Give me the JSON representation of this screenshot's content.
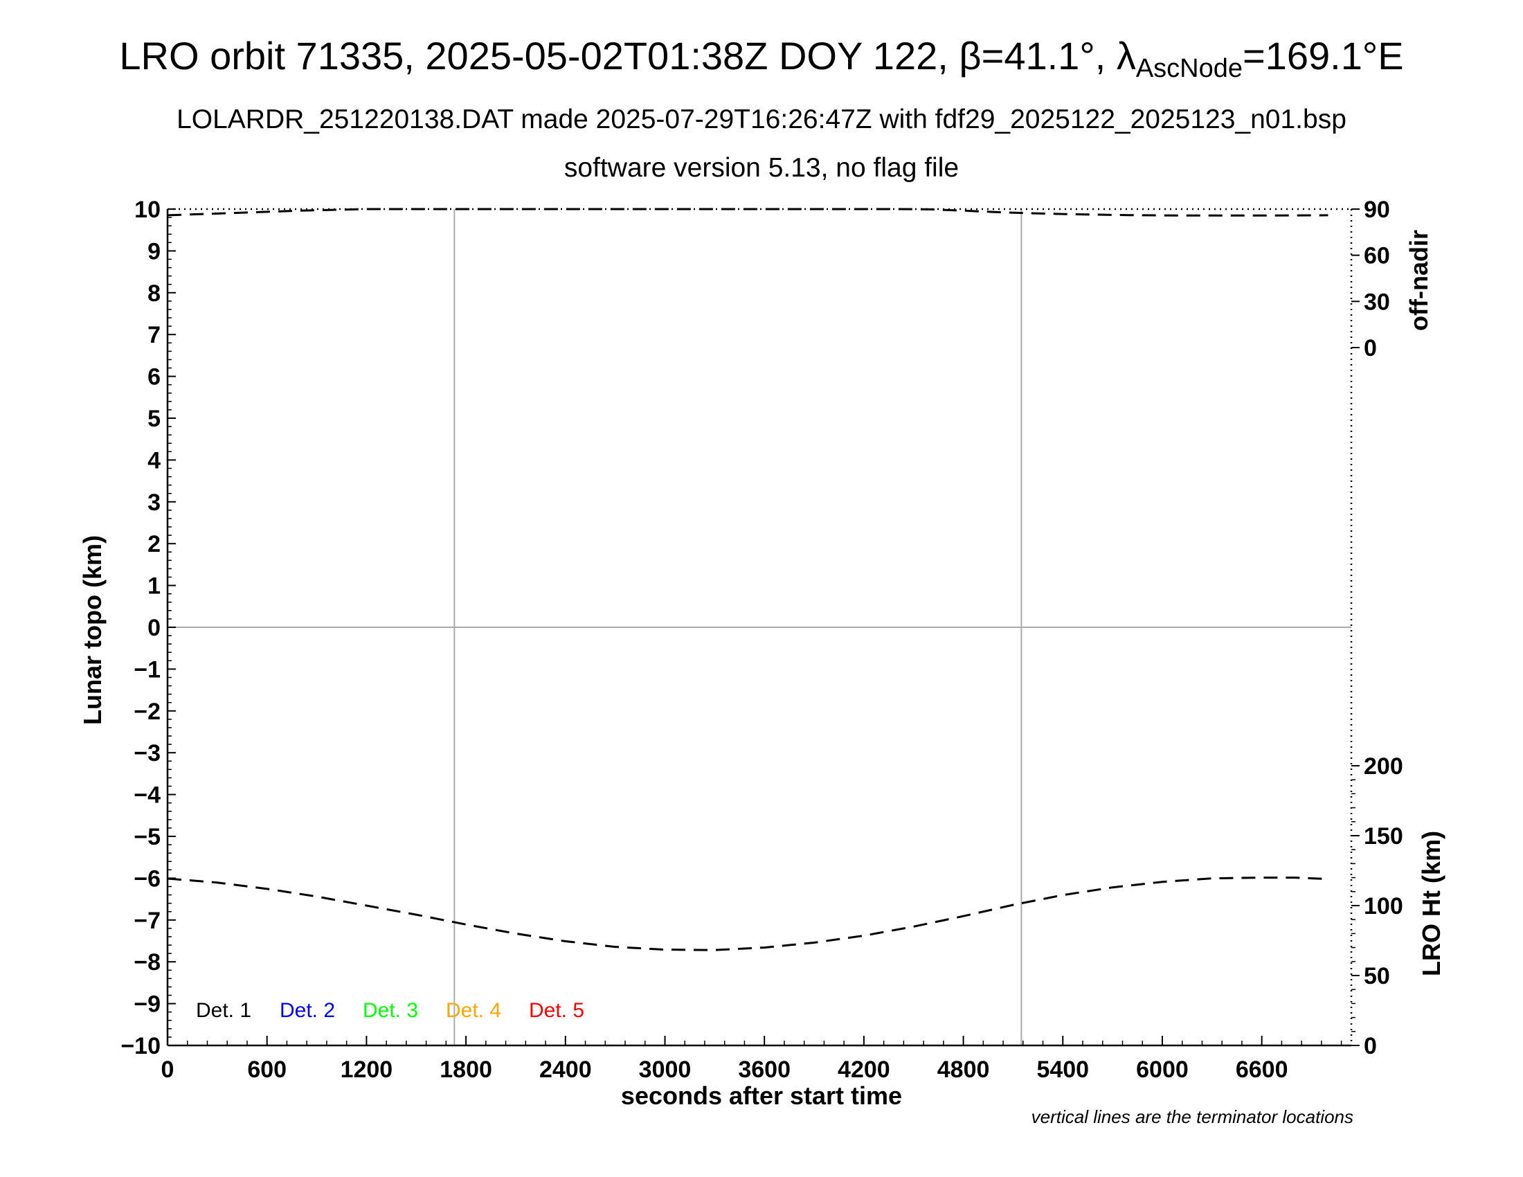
{
  "header": {
    "title_main": "LRO orbit 71335, 2025-05-02T01:38Z DOY 122, β=41.1°, λ",
    "title_sub": "AscNode",
    "title_end": "=169.1°E",
    "subtitle_1": "LOLARDR_251220138.DAT made 2025-07-29T16:26:47Z with fdf29_2025122_2025123_n01.bsp",
    "subtitle_2": "software version 5.13, no flag file"
  },
  "chart_data": {
    "type": "line",
    "xlabel": "seconds after start time",
    "ylabel": "Lunar topo (km)",
    "ylabel_right_top": "off-nadir",
    "ylabel_right_bottom": "LRO Ht (km)",
    "xlim": [
      0,
      7140
    ],
    "ylim": [
      -10,
      10
    ],
    "x_ticks": [
      "0",
      "600",
      "1200",
      "1800",
      "2400",
      "3000",
      "3600",
      "4200",
      "4800",
      "5400",
      "6000",
      "6600"
    ],
    "x_tick_values": [
      0,
      600,
      1200,
      1800,
      2400,
      3000,
      3600,
      4200,
      4800,
      5400,
      6000,
      6600
    ],
    "y_ticks": [
      "10",
      "9",
      "8",
      "7",
      "6",
      "5",
      "4",
      "3",
      "2",
      "1",
      "0",
      "−1",
      "−2",
      "−3",
      "−4",
      "−5",
      "−6",
      "−7",
      "−8",
      "−9",
      "−10"
    ],
    "y_tick_values": [
      10,
      9,
      8,
      7,
      6,
      5,
      4,
      3,
      2,
      1,
      0,
      -1,
      -2,
      -3,
      -4,
      -5,
      -6,
      -7,
      -8,
      -9,
      -10
    ],
    "offnadir_ticks": [
      "90",
      "60",
      "30",
      "0"
    ],
    "offnadir_tick_values": [
      90,
      60,
      30,
      0
    ],
    "offnadir_range": [
      0,
      90
    ],
    "height_ticks": [
      "200",
      "150",
      "100",
      "50",
      "0"
    ],
    "height_tick_values": [
      200,
      150,
      100,
      50,
      0
    ],
    "height_range": [
      0,
      240
    ],
    "terminator_x": [
      1730,
      5150
    ],
    "grid": false,
    "series": [
      {
        "axis": "off-nadir",
        "style": "dashed",
        "color": "#000000",
        "x": [
          0,
          400,
          800,
          1200,
          1600,
          2000,
          2400,
          2800,
          3200,
          3600,
          4000,
          4400,
          4600,
          4800,
          5000,
          5200,
          5400,
          5600,
          5800,
          6000,
          6200,
          6400,
          6600,
          6800,
          7000
        ],
        "y": [
          86,
          87.5,
          89,
          90,
          90,
          90,
          90,
          90,
          90,
          90,
          90,
          90,
          89.8,
          89,
          88,
          87.3,
          86.8,
          86.4,
          86.1,
          85.9,
          85.8,
          85.8,
          85.8,
          85.9,
          86
        ]
      },
      {
        "axis": "height",
        "style": "dashed",
        "color": "#000000",
        "x": [
          0,
          300,
          600,
          900,
          1200,
          1500,
          1800,
          2100,
          2400,
          2700,
          3000,
          3300,
          3600,
          3900,
          4200,
          4500,
          4800,
          5100,
          5400,
          5700,
          6000,
          6300,
          6600,
          6800,
          7000
        ],
        "y": [
          119.3,
          116.5,
          112,
          106.5,
          100,
          93.5,
          86.5,
          80,
          74.5,
          70.5,
          68.5,
          68.2,
          70,
          73.5,
          78.5,
          85,
          92.5,
          100.5,
          107.5,
          113,
          117,
          119.5,
          120,
          120,
          119
        ]
      }
    ],
    "legend": [
      {
        "label": "Det. 1",
        "color": "#000000"
      },
      {
        "label": "Det. 2",
        "color": "#0000ff"
      },
      {
        "label": "Det. 3",
        "color": "#00ff00"
      },
      {
        "label": "Det. 4",
        "color": "#ffa500"
      },
      {
        "label": "Det. 5",
        "color": "#ff0000"
      }
    ],
    "note": "vertical lines are the terminator locations"
  }
}
